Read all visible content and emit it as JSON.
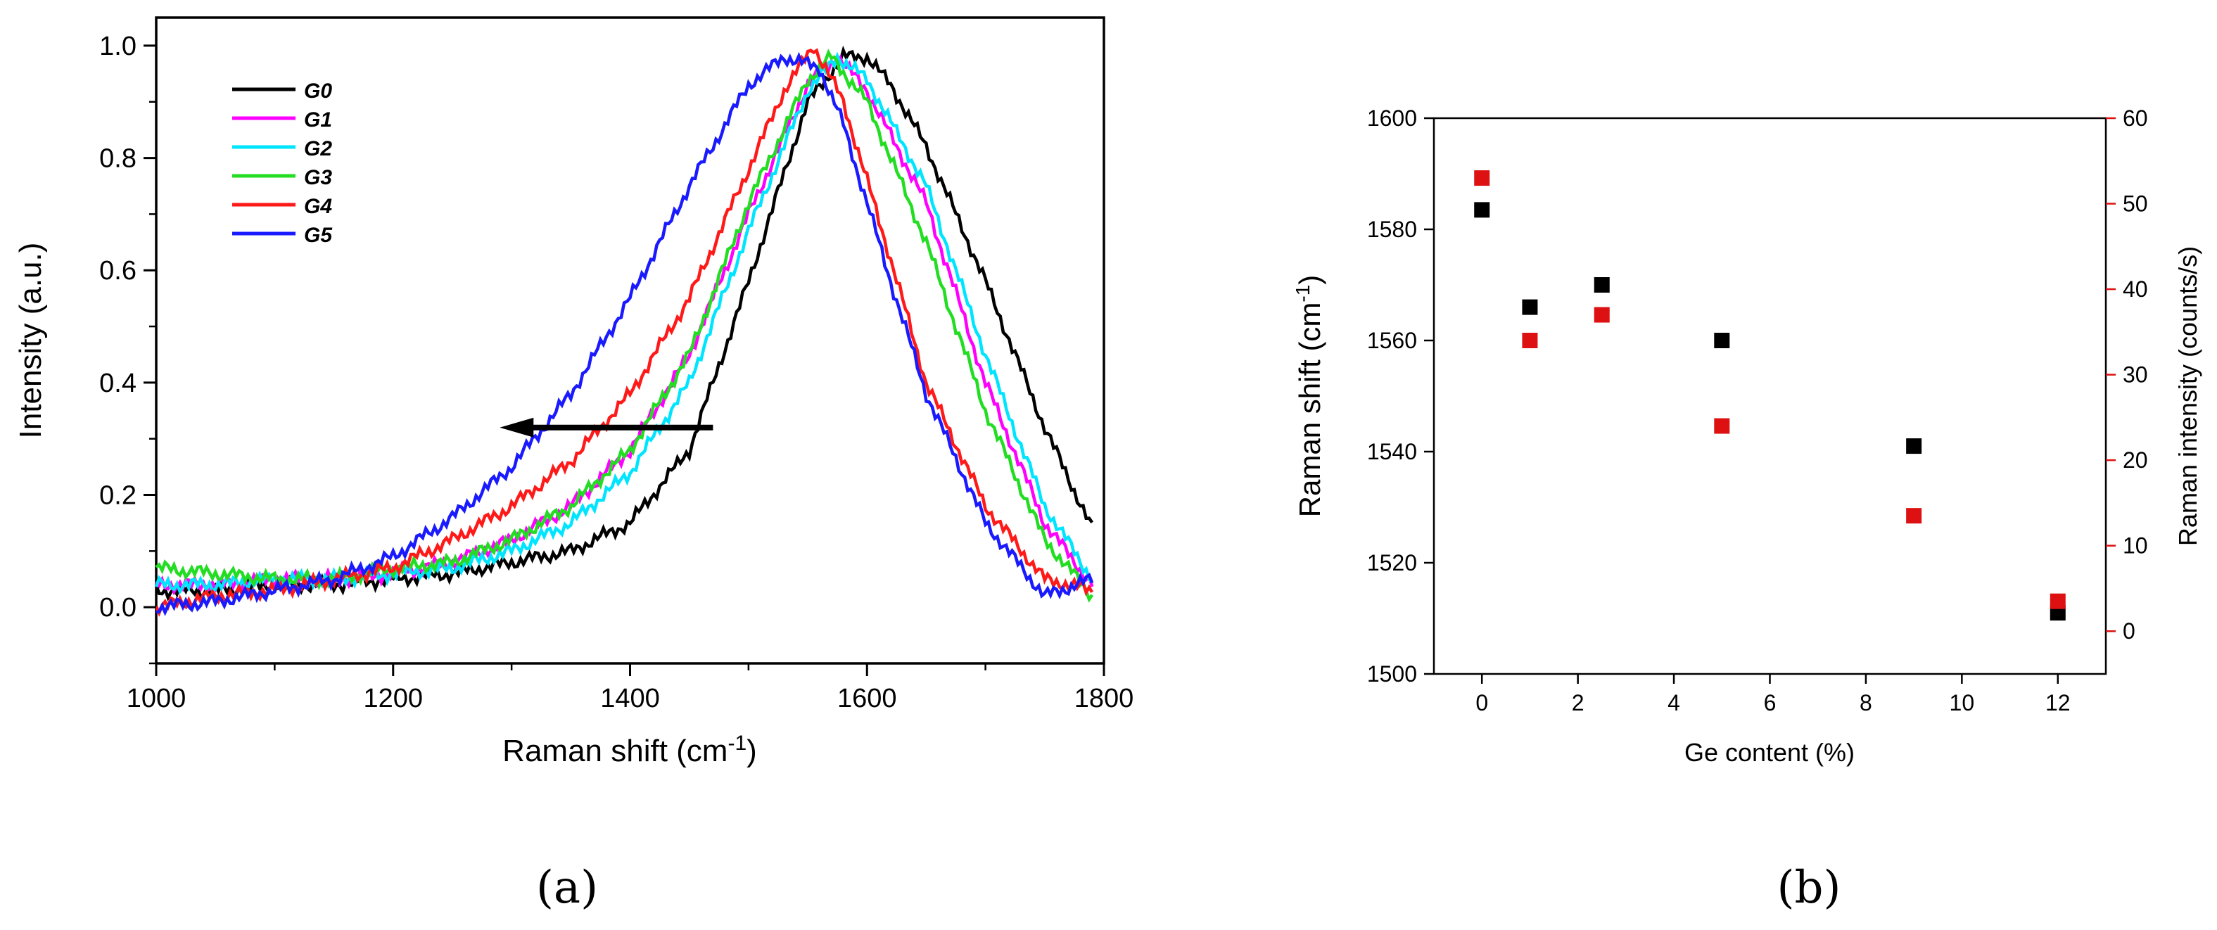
{
  "chart_data": [
    {
      "panel": "(a)",
      "type": "line",
      "xlabel": "Raman shift (cm",
      "xlabel_sup": "-1",
      "xlabel_close": ")",
      "ylabel": "Intensity (a.u.)",
      "xlim": [
        1000,
        1800
      ],
      "ylim": [
        -0.1,
        1.05
      ],
      "xticks": [
        1000,
        1200,
        1400,
        1600,
        1800
      ],
      "yticks": [
        0.0,
        0.2,
        0.4,
        0.6,
        0.8,
        1.0
      ],
      "ytick_labels": [
        "0.0",
        "0.2",
        "0.4",
        "0.6",
        "0.8",
        "1.0"
      ],
      "legend_position": "top-left",
      "annotation": "leftward arrow from x=1470 to x=1290 at y=0.32 indicating peak downshift",
      "arrow": {
        "from": [
          1470,
          0.32
        ],
        "to": [
          1290,
          0.32
        ]
      },
      "series": [
        {
          "name": "G0",
          "color": "#000000",
          "x": [
            1000,
            1050,
            1100,
            1150,
            1200,
            1250,
            1300,
            1350,
            1400,
            1450,
            1500,
            1550,
            1580,
            1600,
            1620,
            1650,
            1700,
            1750,
            1790
          ],
          "y": [
            0.03,
            0.03,
            0.04,
            0.04,
            0.05,
            0.06,
            0.08,
            0.1,
            0.15,
            0.28,
            0.58,
            0.9,
            0.98,
            0.98,
            0.93,
            0.82,
            0.58,
            0.32,
            0.14
          ]
        },
        {
          "name": "G1",
          "color": "#ff00ff",
          "x": [
            1000,
            1050,
            1100,
            1150,
            1200,
            1250,
            1300,
            1350,
            1400,
            1450,
            1500,
            1550,
            1575,
            1600,
            1650,
            1700,
            1750,
            1790
          ],
          "y": [
            0.04,
            0.04,
            0.05,
            0.05,
            0.06,
            0.08,
            0.12,
            0.18,
            0.28,
            0.45,
            0.7,
            0.93,
            0.98,
            0.92,
            0.72,
            0.4,
            0.15,
            0.04
          ]
        },
        {
          "name": "G2",
          "color": "#00e5ff",
          "x": [
            1000,
            1050,
            1100,
            1150,
            1200,
            1250,
            1300,
            1350,
            1400,
            1450,
            1500,
            1550,
            1575,
            1600,
            1650,
            1700,
            1750,
            1790
          ],
          "y": [
            0.04,
            0.04,
            0.05,
            0.05,
            0.06,
            0.07,
            0.1,
            0.15,
            0.24,
            0.4,
            0.67,
            0.92,
            0.98,
            0.94,
            0.75,
            0.45,
            0.18,
            0.05
          ]
        },
        {
          "name": "G3",
          "color": "#22dd22",
          "x": [
            1000,
            1050,
            1100,
            1150,
            1200,
            1250,
            1300,
            1350,
            1400,
            1450,
            1500,
            1550,
            1570,
            1600,
            1650,
            1700,
            1750,
            1790
          ],
          "y": [
            0.07,
            0.06,
            0.05,
            0.05,
            0.07,
            0.08,
            0.12,
            0.18,
            0.28,
            0.45,
            0.72,
            0.94,
            0.98,
            0.9,
            0.65,
            0.35,
            0.12,
            0.02
          ]
        },
        {
          "name": "G4",
          "color": "#ff1a1a",
          "x": [
            1000,
            1050,
            1100,
            1150,
            1200,
            1250,
            1300,
            1350,
            1400,
            1450,
            1500,
            1530,
            1555,
            1580,
            1620,
            1650,
            1700,
            1750,
            1790
          ],
          "y": [
            0.0,
            0.02,
            0.03,
            0.05,
            0.07,
            0.12,
            0.18,
            0.26,
            0.38,
            0.55,
            0.78,
            0.92,
            1.0,
            0.9,
            0.62,
            0.4,
            0.18,
            0.05,
            0.03
          ]
        },
        {
          "name": "G5",
          "color": "#1a1aff",
          "x": [
            1000,
            1050,
            1100,
            1150,
            1200,
            1250,
            1300,
            1350,
            1400,
            1450,
            1500,
            1530,
            1560,
            1580,
            1620,
            1650,
            1700,
            1750,
            1790
          ],
          "y": [
            0.0,
            0.01,
            0.03,
            0.05,
            0.09,
            0.16,
            0.25,
            0.38,
            0.55,
            0.75,
            0.93,
            0.98,
            0.96,
            0.86,
            0.58,
            0.38,
            0.15,
            0.02,
            0.05
          ]
        }
      ]
    },
    {
      "panel": "(b)",
      "type": "scatter",
      "xlabel": "Ge content (%)",
      "ylabel": "Raman shift (cm",
      "ylabel_sup": "-1",
      "ylabel_close": ")",
      "y2label": "Raman intensity (counts/s)",
      "xlim": [
        -1,
        13
      ],
      "ylim": [
        1500,
        1600
      ],
      "y2lim": [
        -5,
        60
      ],
      "xticks": [
        0,
        2,
        4,
        6,
        8,
        10,
        12
      ],
      "yticks": [
        1500,
        1520,
        1540,
        1560,
        1580,
        1600
      ],
      "y2ticks": [
        0,
        10,
        20,
        30,
        40,
        50,
        60
      ],
      "series": [
        {
          "name": "Raman shift",
          "axis": "left",
          "color": "#000000",
          "x": [
            0,
            1,
            2.5,
            5,
            9,
            12
          ],
          "y": [
            1583.5,
            1566,
            1570,
            1560,
            1541,
            1511
          ]
        },
        {
          "name": "Raman intensity",
          "axis": "right",
          "color": "#dd1111",
          "x": [
            0,
            1,
            2.5,
            5,
            9,
            12
          ],
          "y": [
            53,
            34,
            37,
            24,
            13.5,
            3.5
          ]
        }
      ]
    }
  ],
  "captions": [
    "(a)",
    "(b)"
  ],
  "colors": {
    "accent_red": "#dd1111",
    "axis": "#000000"
  }
}
